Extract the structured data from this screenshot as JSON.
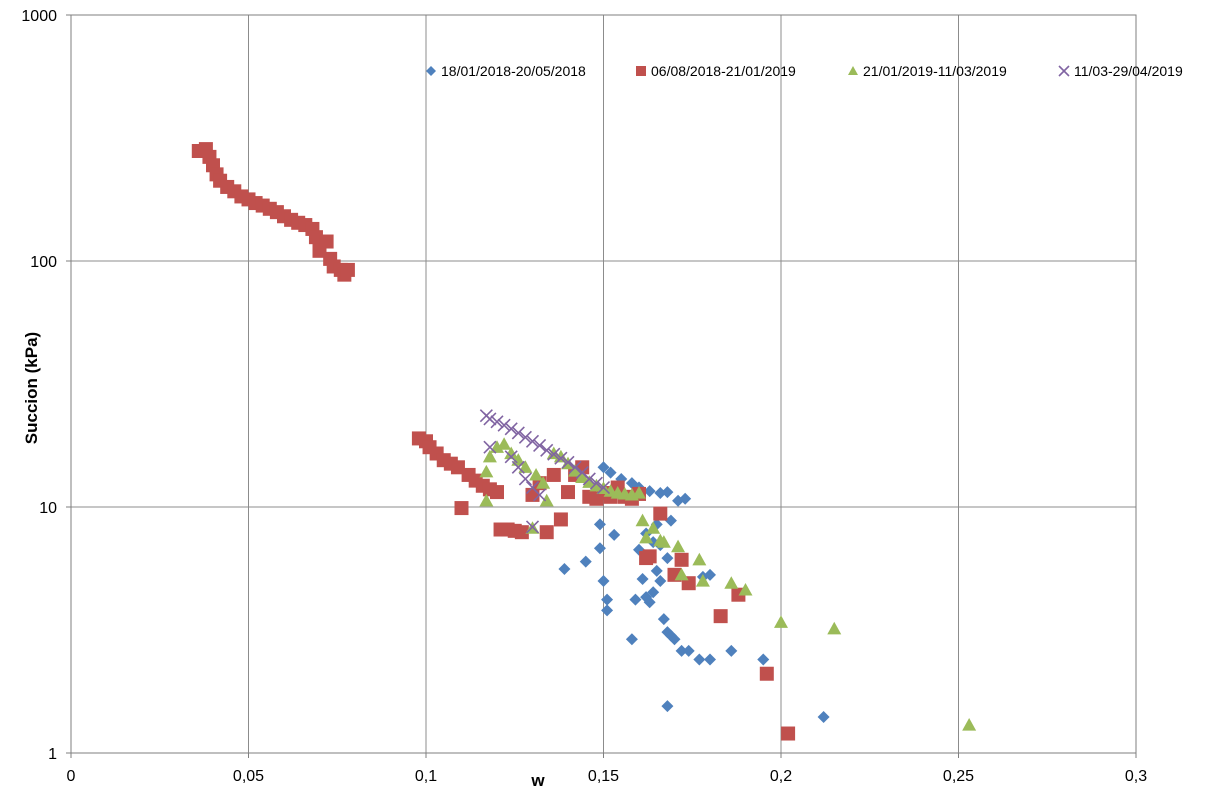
{
  "chart_data": {
    "type": "scatter",
    "title": "",
    "xlabel": "w",
    "ylabel": "Succion (kPa)",
    "xlim": [
      0,
      0.3
    ],
    "ylim": [
      1,
      1000
    ],
    "y_scale": "log",
    "grid": true,
    "legend_position": "top-right",
    "x_ticks": [
      "0",
      "0,05",
      "0,1",
      "0,15",
      "0,2",
      "0,25",
      "0,3"
    ],
    "x_tick_values": [
      0,
      0.05,
      0.1,
      0.15,
      0.2,
      0.25,
      0.3
    ],
    "y_ticks": [
      "1",
      "10",
      "100",
      "1000"
    ],
    "y_tick_values": [
      1,
      10,
      100,
      1000
    ],
    "series": [
      {
        "name": "18/01/2018-20/05/2018",
        "marker": "diamond",
        "color": "#4F81BD",
        "points": [
          [
            0.15,
            14.5
          ],
          [
            0.152,
            13.8
          ],
          [
            0.155,
            13.0
          ],
          [
            0.158,
            12.5
          ],
          [
            0.16,
            12.0
          ],
          [
            0.163,
            11.6
          ],
          [
            0.166,
            11.4
          ],
          [
            0.168,
            11.5
          ],
          [
            0.171,
            10.6
          ],
          [
            0.173,
            10.8
          ],
          [
            0.149,
            8.5
          ],
          [
            0.149,
            6.8
          ],
          [
            0.15,
            5.0
          ],
          [
            0.151,
            4.2
          ],
          [
            0.151,
            3.8
          ],
          [
            0.139,
            5.6
          ],
          [
            0.145,
            6.0
          ],
          [
            0.153,
            7.7
          ],
          [
            0.158,
            2.9
          ],
          [
            0.16,
            6.7
          ],
          [
            0.161,
            5.1
          ],
          [
            0.162,
            4.3
          ],
          [
            0.163,
            4.1
          ],
          [
            0.164,
            4.5
          ],
          [
            0.165,
            5.5
          ],
          [
            0.166,
            5.0
          ],
          [
            0.167,
            3.5
          ],
          [
            0.168,
            3.1
          ],
          [
            0.169,
            3.0
          ],
          [
            0.17,
            2.9
          ],
          [
            0.172,
            2.6
          ],
          [
            0.174,
            2.6
          ],
          [
            0.177,
            2.4
          ],
          [
            0.18,
            2.4
          ],
          [
            0.186,
            2.6
          ],
          [
            0.195,
            2.4
          ],
          [
            0.212,
            1.4
          ],
          [
            0.168,
            1.55
          ],
          [
            0.178,
            5.2
          ],
          [
            0.18,
            5.3
          ],
          [
            0.164,
            7.2
          ],
          [
            0.166,
            7.0
          ],
          [
            0.168,
            6.2
          ],
          [
            0.162,
            7.8
          ],
          [
            0.165,
            8.5
          ],
          [
            0.169,
            8.8
          ],
          [
            0.159,
            4.2
          ],
          [
            0.157,
            10.9
          ]
        ]
      },
      {
        "name": "06/08/2018-21/01/2019",
        "marker": "square",
        "color": "#C0504D",
        "points": [
          [
            0.036,
            280
          ],
          [
            0.038,
            285
          ],
          [
            0.039,
            265
          ],
          [
            0.04,
            245
          ],
          [
            0.041,
            225
          ],
          [
            0.042,
            212
          ],
          [
            0.044,
            200
          ],
          [
            0.046,
            192
          ],
          [
            0.048,
            183
          ],
          [
            0.05,
            178
          ],
          [
            0.052,
            172
          ],
          [
            0.054,
            168
          ],
          [
            0.056,
            163
          ],
          [
            0.058,
            158
          ],
          [
            0.06,
            152
          ],
          [
            0.062,
            147
          ],
          [
            0.064,
            143
          ],
          [
            0.066,
            140
          ],
          [
            0.068,
            135
          ],
          [
            0.069,
            125
          ],
          [
            0.07,
            110
          ],
          [
            0.072,
            120
          ],
          [
            0.073,
            102
          ],
          [
            0.074,
            95
          ],
          [
            0.076,
            92
          ],
          [
            0.077,
            88
          ],
          [
            0.078,
            92
          ],
          [
            0.098,
            19.0
          ],
          [
            0.1,
            18.5
          ],
          [
            0.101,
            17.5
          ],
          [
            0.103,
            16.5
          ],
          [
            0.105,
            15.5
          ],
          [
            0.107,
            15.0
          ],
          [
            0.109,
            14.5
          ],
          [
            0.11,
            9.9
          ],
          [
            0.112,
            13.5
          ],
          [
            0.114,
            12.8
          ],
          [
            0.116,
            12.2
          ],
          [
            0.118,
            11.8
          ],
          [
            0.12,
            11.5
          ],
          [
            0.121,
            8.1
          ],
          [
            0.123,
            8.1
          ],
          [
            0.125,
            8.0
          ],
          [
            0.127,
            7.9
          ],
          [
            0.13,
            11.2
          ],
          [
            0.132,
            12.5
          ],
          [
            0.134,
            7.9
          ],
          [
            0.136,
            13.5
          ],
          [
            0.138,
            8.9
          ],
          [
            0.14,
            11.5
          ],
          [
            0.142,
            13.5
          ],
          [
            0.144,
            14.5
          ],
          [
            0.146,
            11.0
          ],
          [
            0.148,
            10.8
          ],
          [
            0.15,
            11.4
          ],
          [
            0.152,
            11.0
          ],
          [
            0.154,
            12.0
          ],
          [
            0.156,
            11.0
          ],
          [
            0.158,
            10.8
          ],
          [
            0.16,
            11.3
          ],
          [
            0.162,
            6.2
          ],
          [
            0.163,
            6.3
          ],
          [
            0.166,
            9.4
          ],
          [
            0.17,
            5.3
          ],
          [
            0.172,
            6.1
          ],
          [
            0.174,
            4.9
          ],
          [
            0.183,
            3.6
          ],
          [
            0.188,
            4.4
          ],
          [
            0.196,
            2.1
          ],
          [
            0.202,
            1.2
          ]
        ]
      },
      {
        "name": "21/01/2019-11/03/2019",
        "marker": "triangle",
        "color": "#9BBB59",
        "points": [
          [
            0.117,
            10.6
          ],
          [
            0.117,
            13.9
          ],
          [
            0.118,
            16.0
          ],
          [
            0.12,
            17.5
          ],
          [
            0.122,
            18.0
          ],
          [
            0.124,
            16.5
          ],
          [
            0.126,
            15.5
          ],
          [
            0.128,
            14.5
          ],
          [
            0.13,
            8.2
          ],
          [
            0.131,
            13.5
          ],
          [
            0.133,
            12.5
          ],
          [
            0.134,
            10.6
          ],
          [
            0.136,
            16.5
          ],
          [
            0.138,
            16.0
          ],
          [
            0.14,
            15.0
          ],
          [
            0.142,
            14.0
          ],
          [
            0.144,
            13.2
          ],
          [
            0.146,
            12.6
          ],
          [
            0.148,
            12.2
          ],
          [
            0.15,
            11.9
          ],
          [
            0.152,
            11.6
          ],
          [
            0.154,
            11.4
          ],
          [
            0.156,
            11.3
          ],
          [
            0.158,
            11.2
          ],
          [
            0.16,
            11.4
          ],
          [
            0.161,
            8.8
          ],
          [
            0.162,
            7.5
          ],
          [
            0.164,
            8.2
          ],
          [
            0.166,
            7.3
          ],
          [
            0.167,
            7.2
          ],
          [
            0.171,
            6.9
          ],
          [
            0.172,
            5.3
          ],
          [
            0.177,
            6.1
          ],
          [
            0.178,
            5.0
          ],
          [
            0.186,
            4.9
          ],
          [
            0.19,
            4.6
          ],
          [
            0.2,
            3.4
          ],
          [
            0.215,
            3.2
          ],
          [
            0.253,
            1.3
          ]
        ]
      },
      {
        "name": "11/03-29/04/2019",
        "marker": "x",
        "color": "#8064A2",
        "points": [
          [
            0.117,
            23.5
          ],
          [
            0.118,
            22.8
          ],
          [
            0.12,
            22.2
          ],
          [
            0.122,
            21.5
          ],
          [
            0.124,
            20.8
          ],
          [
            0.126,
            20.0
          ],
          [
            0.128,
            19.2
          ],
          [
            0.13,
            18.5
          ],
          [
            0.132,
            17.8
          ],
          [
            0.134,
            17.0
          ],
          [
            0.136,
            16.4
          ],
          [
            0.138,
            15.8
          ],
          [
            0.14,
            15.2
          ],
          [
            0.142,
            14.5
          ],
          [
            0.144,
            13.8
          ],
          [
            0.124,
            16.0
          ],
          [
            0.126,
            14.5
          ],
          [
            0.128,
            13.0
          ],
          [
            0.13,
            12.0
          ],
          [
            0.132,
            11.2
          ],
          [
            0.118,
            17.5
          ],
          [
            0.13,
            8.3
          ],
          [
            0.146,
            13.0
          ],
          [
            0.148,
            12.5
          ],
          [
            0.15,
            12.0
          ]
        ]
      }
    ]
  }
}
